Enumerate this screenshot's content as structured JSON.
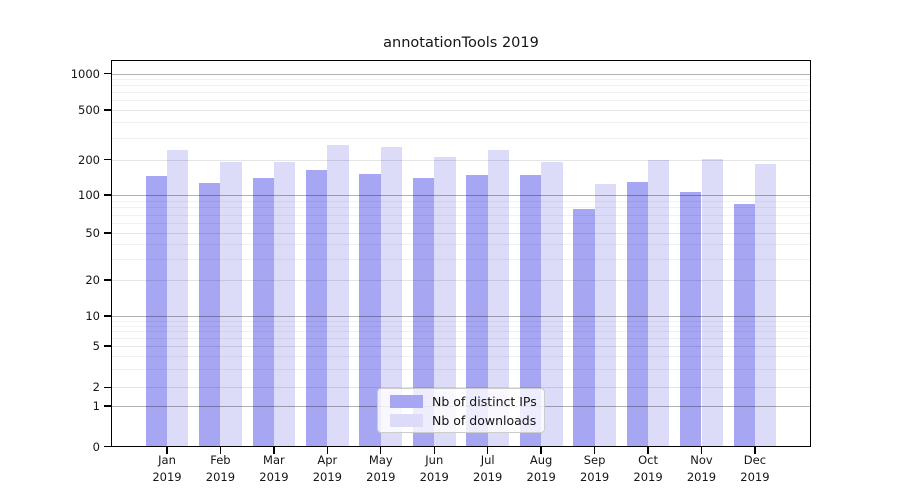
{
  "chart_data": {
    "type": "bar",
    "title": "annotationTools 2019",
    "categories": [
      "Jan 2019",
      "Feb 2019",
      "Mar 2019",
      "Apr 2019",
      "May 2019",
      "Jun 2019",
      "Jul 2019",
      "Aug 2019",
      "Sep 2019",
      "Oct 2019",
      "Nov 2019",
      "Dec 2019"
    ],
    "series": [
      {
        "name": "Nb of distinct IPs",
        "color": "#a6a6f2",
        "values": [
          145,
          126,
          139,
          163,
          151,
          139,
          149,
          149,
          77,
          128,
          107,
          85
        ]
      },
      {
        "name": "Nb of downloads",
        "color": "#dcdcf9",
        "values": [
          237,
          190,
          190,
          261,
          252,
          208,
          237,
          190,
          123,
          200,
          201,
          183
        ]
      }
    ],
    "xlabel": "",
    "ylabel": "",
    "yscale": "symlog",
    "yticks": [
      0,
      1,
      2,
      5,
      10,
      20,
      50,
      100,
      200,
      500,
      1000
    ],
    "ylim": [
      0,
      1280
    ],
    "grid": true,
    "grid_which": "both",
    "legend_position": "lower-center-inside",
    "background": "#ffffff"
  }
}
